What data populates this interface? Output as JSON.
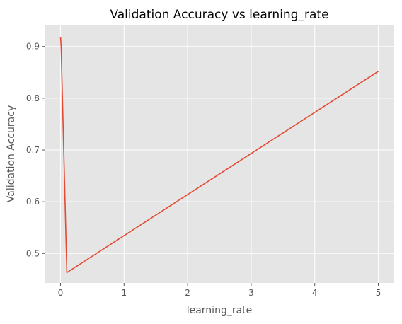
{
  "chart_data": {
    "type": "line",
    "title": "Validation Accuracy vs learning_rate",
    "xlabel": "learning_rate",
    "ylabel": "Validation Accuracy",
    "xlim": [
      -0.25,
      5.25
    ],
    "ylim": [
      0.443,
      0.942
    ],
    "xticks": [
      0,
      1,
      2,
      3,
      4,
      5
    ],
    "yticks": [
      0.5,
      0.6,
      0.7,
      0.8,
      0.9
    ],
    "grid": true,
    "legend": "none",
    "series": [
      {
        "x": [
          0.001,
          0.01,
          0.1,
          5
        ],
        "y": [
          0.918,
          0.9,
          0.463,
          0.852
        ],
        "color": "#E24A33"
      }
    ]
  },
  "colors": {
    "plot_background": "#E5E5E5",
    "grid": "#FFFFFF",
    "tick_color": "#555555"
  }
}
